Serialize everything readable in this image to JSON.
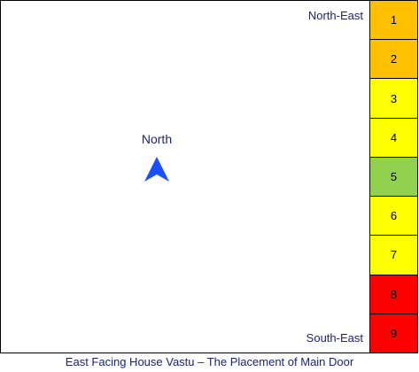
{
  "labels": {
    "north_east": "North-East",
    "south_east": "South-East",
    "north": "North"
  },
  "icons": {
    "compass": "north-arrow-icon"
  },
  "segments": [
    {
      "label": "1",
      "color": "#ffc000"
    },
    {
      "label": "2",
      "color": "#ffc000"
    },
    {
      "label": "3",
      "color": "#ffff00"
    },
    {
      "label": "4",
      "color": "#ffff00"
    },
    {
      "label": "5",
      "color": "#92d050"
    },
    {
      "label": "6",
      "color": "#ffff00"
    },
    {
      "label": "7",
      "color": "#ffff00"
    },
    {
      "label": "8",
      "color": "#ff0000"
    },
    {
      "label": "9",
      "color": "#ff0000"
    }
  ],
  "colors": {
    "arrow": "#1a4fff",
    "text": "#1a237e"
  },
  "caption": "East Facing House Vastu – The Placement of Main Door"
}
